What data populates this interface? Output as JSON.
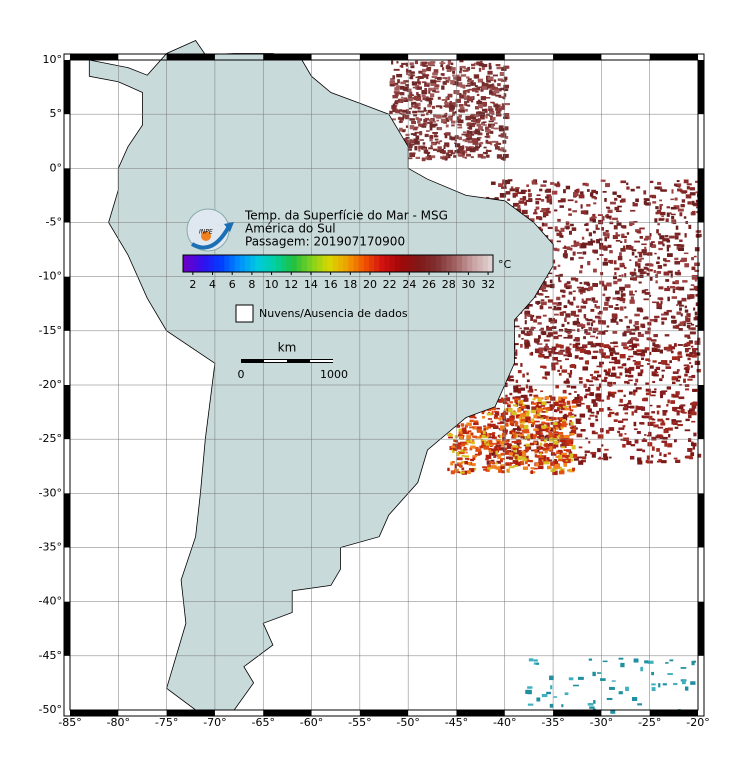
{
  "map": {
    "title": "Temp. da Superfície do Mar - MSG",
    "region": "América do Sul",
    "pass": "Passagem: 201907170900",
    "logo": "INPE",
    "colorbar": {
      "unit": "°C",
      "lim": [
        1,
        32.5
      ],
      "ticks": [
        2,
        4,
        6,
        8,
        10,
        12,
        14,
        16,
        18,
        20,
        22,
        24,
        26,
        28,
        30,
        32
      ]
    },
    "legend": "Nuvens/Ausencia de dados",
    "scale": {
      "unit": "km",
      "labels": [
        "0",
        "1000"
      ]
    },
    "lon_lim": [
      -85,
      -20
    ],
    "lat_lim": [
      -50,
      10
    ],
    "lon_ticks": [
      {
        "value": -85,
        "label": "-85°"
      },
      {
        "value": -80,
        "label": "-80°"
      },
      {
        "value": -75,
        "label": "-75°"
      },
      {
        "value": -70,
        "label": "-70°"
      },
      {
        "value": -65,
        "label": "-65°"
      },
      {
        "value": -60,
        "label": "-60°"
      },
      {
        "value": -55,
        "label": "-55°"
      },
      {
        "value": -50,
        "label": "-50°"
      },
      {
        "value": -45,
        "label": "-45°"
      },
      {
        "value": -40,
        "label": "-40°"
      },
      {
        "value": -35,
        "label": "-35°"
      },
      {
        "value": -30,
        "label": "-30°"
      },
      {
        "value": -25,
        "label": "-25°"
      },
      {
        "value": -20,
        "label": "-20°"
      }
    ],
    "lat_ticks": [
      {
        "value": 10,
        "label": "10°"
      },
      {
        "value": 5,
        "label": "5°"
      },
      {
        "value": 0,
        "label": "0°"
      },
      {
        "value": -5,
        "label": "-5°"
      },
      {
        "value": -10,
        "label": "-10°"
      },
      {
        "value": -15,
        "label": "-15°"
      },
      {
        "value": -20,
        "label": "-20°"
      },
      {
        "value": -25,
        "label": "-25°"
      },
      {
        "value": -30,
        "label": "-30°"
      },
      {
        "value": -35,
        "label": "-35°"
      },
      {
        "value": -40,
        "label": "-40°"
      },
      {
        "value": -45,
        "label": "-45°"
      },
      {
        "value": -50,
        "label": "-50°"
      }
    ]
  }
}
